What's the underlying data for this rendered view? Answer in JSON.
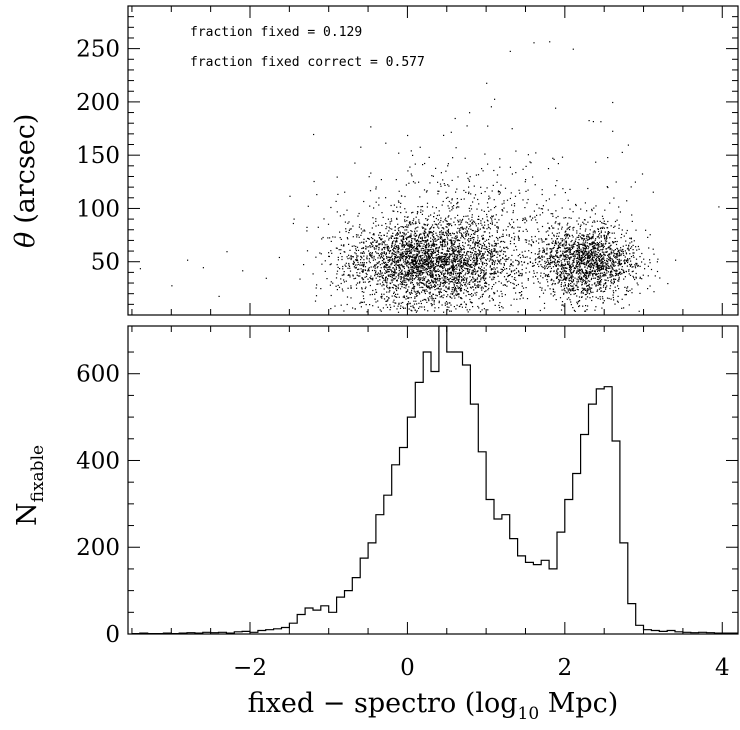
{
  "chart_data": [
    {
      "type": "scatter",
      "ylabel": "θ (arcsec)",
      "ylabel_symbol": "θ",
      "ylabel_unit": "(arcsec)",
      "xlim": [
        -3.55,
        4.2
      ],
      "ylim": [
        0,
        290
      ],
      "yticks": [
        50,
        100,
        150,
        200,
        250
      ],
      "ytick_labels": [
        "50",
        "100",
        "150",
        "200",
        "250"
      ],
      "annotations": [
        "fraction fixed = 0.129",
        "fraction fixed correct = 0.577"
      ],
      "grid": false,
      "density_clusters": [
        {
          "x_center": 0.3,
          "x_spread": 0.55,
          "y_center": 48,
          "y_spread": 22,
          "count": 3200
        },
        {
          "x_center": 2.3,
          "x_spread": 0.32,
          "y_center": 48,
          "y_spread": 18,
          "count": 1700
        },
        {
          "x_center": 0.9,
          "x_spread": 0.9,
          "y_center": 85,
          "y_spread": 35,
          "count": 600
        }
      ],
      "outlier_points": [
        {
          "x": 1.8,
          "y": 257
        },
        {
          "x": 1.6,
          "y": 256
        },
        {
          "x": 2.1,
          "y": 250
        },
        {
          "x": 1.3,
          "y": 248
        },
        {
          "x": 1.0,
          "y": 218
        },
        {
          "x": 1.1,
          "y": 203
        },
        {
          "x": 2.6,
          "y": 200
        },
        {
          "x": 0.6,
          "y": 185
        },
        {
          "x": 2.3,
          "y": 183
        },
        {
          "x": 2.45,
          "y": 182
        },
        {
          "x": 0.55,
          "y": 172
        },
        {
          "x": -1.2,
          "y": 170
        },
        {
          "x": 2.6,
          "y": 173
        },
        {
          "x": 0.75,
          "y": 178
        },
        {
          "x": 2.8,
          "y": 160
        },
        {
          "x": -0.6,
          "y": 158
        },
        {
          "x": 3.95,
          "y": 102
        },
        {
          "x": 3.4,
          "y": 52
        },
        {
          "x": -3.4,
          "y": 44
        },
        {
          "x": -3.0,
          "y": 28
        },
        {
          "x": -2.6,
          "y": 45
        },
        {
          "x": -2.3,
          "y": 60
        },
        {
          "x": -2.1,
          "y": 42
        },
        {
          "x": -2.8,
          "y": 52
        },
        {
          "x": -1.8,
          "y": 35
        },
        {
          "x": 3.3,
          "y": 30
        },
        {
          "x": -2.4,
          "y": 18
        },
        {
          "x": -1.5,
          "y": 112
        },
        {
          "x": -0.9,
          "y": 130
        },
        {
          "x": 1.5,
          "y": 140
        }
      ]
    },
    {
      "type": "bar",
      "subtype": "histogram-step",
      "ylabel": "N",
      "ylabel_subscript": "fixable",
      "xlabel": "fixed − spectro (log",
      "xlabel_subscript": "10",
      "xlabel_suffix": " Mpc)",
      "xlim": [
        -3.55,
        4.2
      ],
      "ylim": [
        0,
        710
      ],
      "xticks": [
        -2,
        0,
        2,
        4
      ],
      "xtick_labels": [
        "−2",
        "0",
        "2",
        "4"
      ],
      "yticks": [
        0,
        200,
        400,
        600
      ],
      "ytick_labels": [
        "0",
        "200",
        "400",
        "600"
      ],
      "bin_width": 0.1,
      "bin_start": -3.5,
      "values": [
        1,
        2,
        1,
        1,
        2,
        1,
        2,
        3,
        2,
        4,
        3,
        4,
        2,
        5,
        6,
        4,
        8,
        10,
        12,
        15,
        25,
        45,
        60,
        55,
        65,
        50,
        85,
        100,
        130,
        175,
        210,
        275,
        320,
        390,
        430,
        500,
        580,
        650,
        605,
        710,
        650,
        650,
        620,
        530,
        420,
        310,
        265,
        275,
        220,
        180,
        165,
        160,
        170,
        150,
        235,
        310,
        370,
        460,
        530,
        565,
        570,
        445,
        210,
        70,
        20,
        10,
        8,
        6,
        8,
        5,
        4,
        3,
        4,
        3,
        2,
        2,
        2
      ]
    }
  ]
}
